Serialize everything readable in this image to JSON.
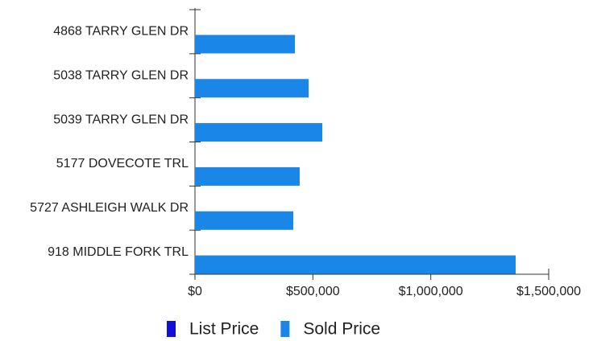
{
  "chart_data": {
    "type": "bar",
    "orientation": "horizontal",
    "categories": [
      "4868 TARRY GLEN DR",
      "5038 TARRY GLEN DR",
      "5039 TARRY GLEN DR",
      "5177 DOVECOTE TRL",
      "5727 ASHLEIGH WALK DR",
      "918 MIDDLE FORK TRL"
    ],
    "series": [
      {
        "name": "List Price",
        "color": "#1010d8",
        "values": [
          null,
          null,
          null,
          null,
          null,
          null
        ]
      },
      {
        "name": "Sold Price",
        "color": "#1a86e8",
        "values": [
          424000,
          482000,
          540000,
          444000,
          417000,
          1360000
        ]
      }
    ],
    "xlim": [
      0,
      1500000
    ],
    "xticks": [
      {
        "value": 0,
        "label": "$0"
      },
      {
        "value": 500000,
        "label": "$500,000"
      },
      {
        "value": 1000000,
        "label": "$1,000,000"
      },
      {
        "value": 1500000,
        "label": "$1,500,000"
      }
    ],
    "legend": "bottom"
  }
}
